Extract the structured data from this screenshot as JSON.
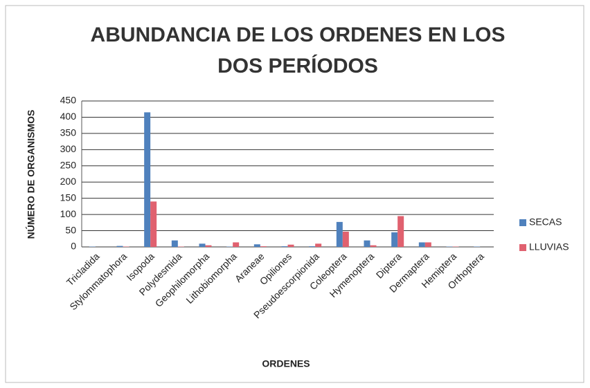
{
  "chart_data": {
    "type": "bar",
    "title": "ABUNDANCIA DE LOS ORDENES  EN LOS DOS PERÍODOS",
    "xlabel": "ORDENES",
    "ylabel": "NÚMERO DE ORGANISMOS",
    "categories": [
      "Tricladida",
      "Stylommatophora",
      "Isopoda",
      "Polydesmida",
      "Geophilomorpha",
      "Lithobiomorpha",
      "Araneae",
      "Opiliones",
      "Pseudoescorpionida",
      "Coleoptera",
      "Hymenoptera",
      "Diptera",
      "Dermaptera",
      "Hemiptera",
      "Orthoptera"
    ],
    "series": [
      {
        "name": "SECAS",
        "color": "#4f81bd",
        "values": [
          1,
          3,
          415,
          20,
          10,
          1,
          8,
          2,
          2,
          77,
          20,
          45,
          14,
          1,
          1
        ]
      },
      {
        "name": "LLUVIAS",
        "color": "#e0616f",
        "values": [
          0,
          1,
          140,
          1,
          5,
          14,
          2,
          7,
          10,
          47,
          5,
          95,
          14,
          1,
          0
        ]
      }
    ],
    "ylim": [
      0,
      450
    ],
    "yticks": [
      0,
      50,
      100,
      150,
      200,
      250,
      300,
      350,
      400,
      450
    ],
    "grid": true,
    "legend": "right"
  }
}
